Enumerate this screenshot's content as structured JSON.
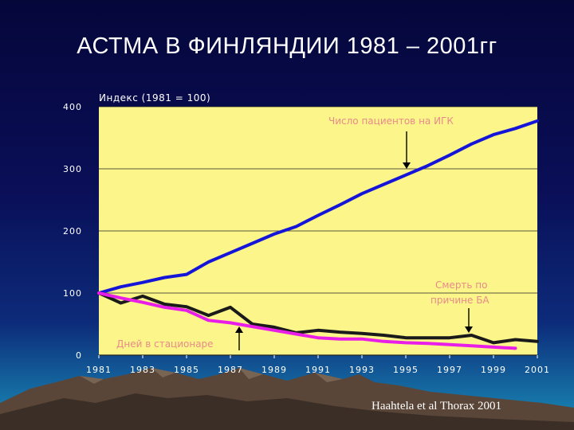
{
  "slide": {
    "title": "АСТМА В ФИНЛЯНДИИ 1981 – 2001гг",
    "citation": "Haahtela et al Thorax 2001"
  },
  "colors": {
    "background_top": "#05063a",
    "plot_area": "#fbf58a",
    "series_patients": "#1515d9",
    "series_deaths": "#1a1a1a",
    "series_hospital_days": "#e81ee8",
    "annotation_text": "#e98a8a"
  },
  "chart_data": {
    "type": "line",
    "title": "",
    "ylabel": "Индекс (1981 = 100)",
    "xlabel": "",
    "xlim": [
      1981,
      2001
    ],
    "ylim": [
      0,
      400
    ],
    "grid": true,
    "x_ticks": [
      "1981",
      "1983",
      "1985",
      "1987",
      "1989",
      "1991",
      "1993",
      "1995",
      "1997",
      "1999",
      "2001"
    ],
    "y_ticks": [
      "0",
      "100",
      "200",
      "300",
      "400"
    ],
    "series": [
      {
        "name": "Число пациентов на ИГК",
        "color": "#1515d9",
        "x": [
          1981,
          1982,
          1983,
          1984,
          1985,
          1986,
          1987,
          1988,
          1989,
          1990,
          1991,
          1992,
          1993,
          1994,
          1995,
          1996,
          1997,
          1998,
          1999,
          2000,
          2001
        ],
        "y": [
          100,
          110,
          117,
          125,
          130,
          150,
          165,
          180,
          195,
          207,
          225,
          242,
          260,
          275,
          290,
          305,
          322,
          340,
          355,
          365,
          377
        ]
      },
      {
        "name": "Смерть по причине БА",
        "color": "#1a1a1a",
        "x": [
          1981,
          1982,
          1983,
          1984,
          1985,
          1986,
          1987,
          1988,
          1989,
          1990,
          1991,
          1992,
          1993,
          1994,
          1995,
          1996,
          1997,
          1998,
          1999,
          2000,
          2001
        ],
        "y": [
          100,
          84,
          95,
          82,
          78,
          64,
          77,
          50,
          45,
          36,
          40,
          37,
          35,
          32,
          28,
          28,
          28,
          32,
          20,
          25,
          22
        ]
      },
      {
        "name": "Дней в стационаре",
        "color": "#e81ee8",
        "x": [
          1981,
          1982,
          1983,
          1984,
          1985,
          1986,
          1987,
          1988,
          1989,
          1990,
          1991,
          1992,
          1993,
          1994,
          1995,
          1996,
          1997,
          1998,
          1999,
          2000
        ],
        "y": [
          100,
          92,
          85,
          77,
          72,
          56,
          52,
          46,
          40,
          34,
          28,
          26,
          26,
          22,
          20,
          19,
          17,
          15,
          13,
          11
        ]
      }
    ],
    "annotations": [
      {
        "text": "Число пациентов на ИГК",
        "points_to": "series_patients",
        "at_x": 1995
      },
      {
        "line1": "Смерть по",
        "line2": "причине БА",
        "points_to": "series_deaths",
        "at_x": 1999
      },
      {
        "text": "Дней в стационаре",
        "points_to": "series_hospital_days",
        "at_x": 1987
      }
    ]
  }
}
